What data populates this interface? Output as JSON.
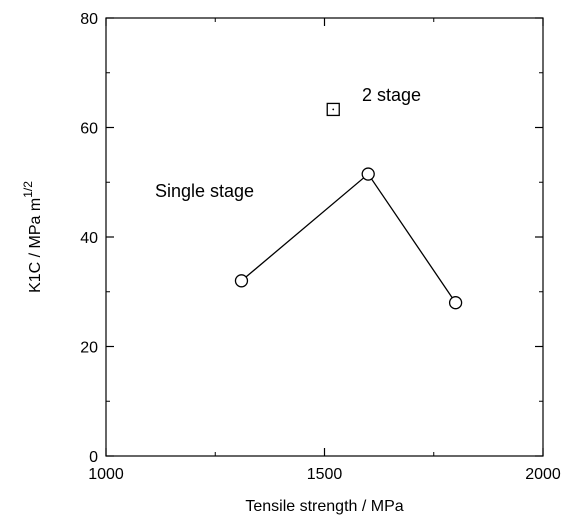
{
  "chart_data": {
    "type": "scatter",
    "xlabel": "Tensile strength / MPa",
    "ylabel_main": "K1C / MPa m",
    "ylabel_sup": "1/2",
    "xlim": [
      1000,
      2000
    ],
    "ylim": [
      0,
      80
    ],
    "x_ticks": [
      1000,
      1500,
      2000
    ],
    "y_ticks": [
      0,
      20,
      40,
      60,
      80
    ],
    "grid": false,
    "series": [
      {
        "name": "Single stage",
        "marker": "circle",
        "connected": true,
        "points": [
          {
            "x": 1310,
            "y": 32
          },
          {
            "x": 1600,
            "y": 51.5
          },
          {
            "x": 1800,
            "y": 28
          }
        ]
      },
      {
        "name": "2 stage",
        "marker": "square",
        "connected": false,
        "points": [
          {
            "x": 1520,
            "y": 63.3
          }
        ]
      }
    ],
    "annotations": [
      {
        "text": "Single stage",
        "x": 1310,
        "y": 48
      },
      {
        "text": "2 stage",
        "x": 1590,
        "y": 66
      }
    ]
  }
}
